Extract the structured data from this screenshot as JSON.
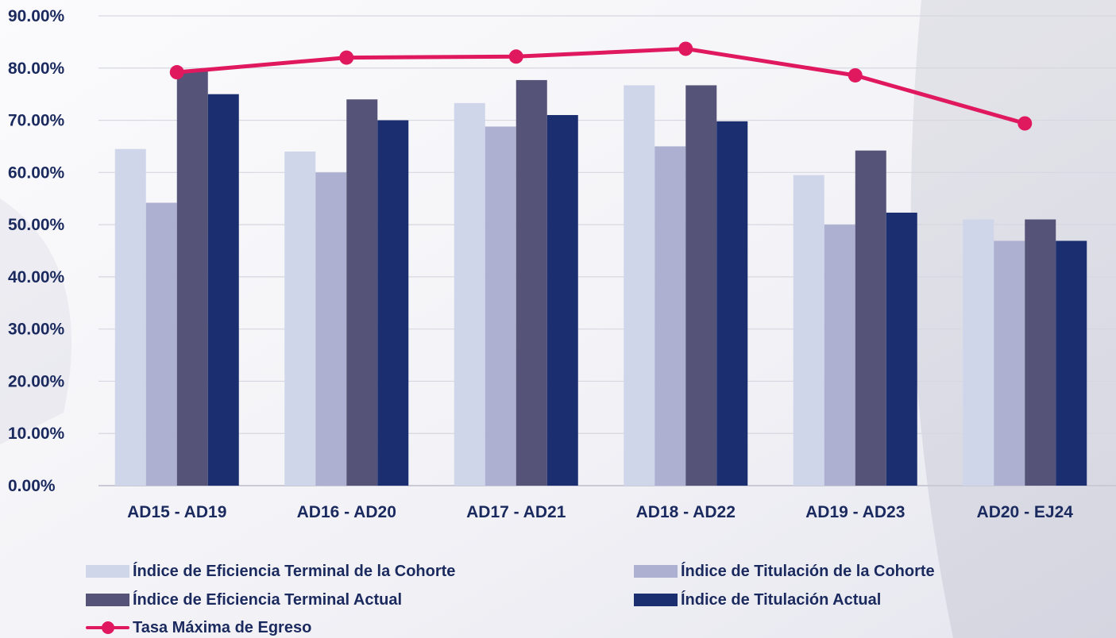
{
  "chart_data": {
    "type": "bar",
    "title": "",
    "xlabel": "",
    "ylabel": "",
    "ylim": [
      0,
      90
    ],
    "yticks": [
      "0.00%",
      "10.00%",
      "20.00%",
      "30.00%",
      "40.00%",
      "50.00%",
      "60.00%",
      "70.00%",
      "80.00%",
      "90.00%"
    ],
    "grid": true,
    "legend_position": "bottom",
    "categories": [
      "AD15 - AD19",
      "AD16 - AD20",
      "AD17 - AD21",
      "AD18 - AD22",
      "AD19 - AD23",
      "AD20 - EJ24"
    ],
    "series": [
      {
        "name": "Índice de Eficiencia Terminal de la Cohorte",
        "type": "bar",
        "color": "#cfd6ea",
        "values": [
          64.5,
          64.0,
          73.3,
          76.7,
          59.5,
          51.0
        ]
      },
      {
        "name": "Índice de Titulación de la Cohorte",
        "type": "bar",
        "color": "#aeb0d2",
        "values": [
          54.2,
          60.0,
          68.8,
          65.0,
          50.0,
          46.9
        ]
      },
      {
        "name": "Índice de Eficiencia Terminal Actual",
        "type": "bar",
        "color": "#555478",
        "values": [
          79.5,
          74.0,
          77.7,
          76.7,
          64.2,
          51.0
        ]
      },
      {
        "name": "Índice de Titulación Actual",
        "type": "bar",
        "color": "#1b2f70",
        "values": [
          75.0,
          70.0,
          71.0,
          69.8,
          52.3,
          46.9
        ]
      },
      {
        "name": "Tasa Máxima de Egreso",
        "type": "line",
        "color": "#e0195f",
        "values": [
          79.2,
          82.0,
          82.2,
          83.7,
          78.6,
          69.4
        ]
      }
    ]
  }
}
